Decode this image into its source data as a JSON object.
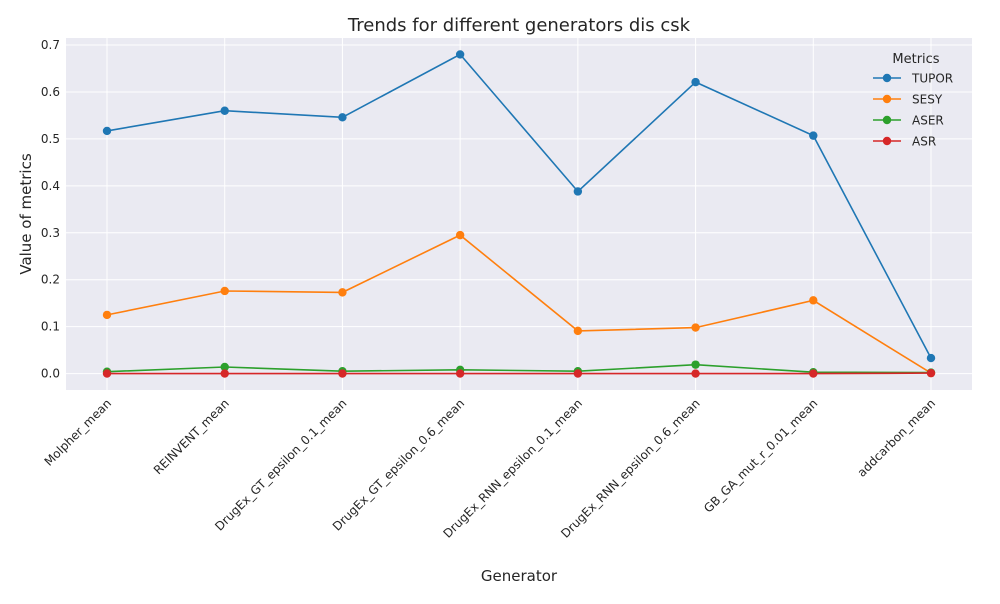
{
  "chart_data": {
    "type": "line",
    "title": "Trends for different generators dis csk",
    "xlabel": "Generator",
    "ylabel": "Value of metrics",
    "categories": [
      "Molpher_mean",
      "REINVENT_mean",
      "DrugEx_GT_epsilon_0.1_mean",
      "DrugEx_GT_epsilon_0.6_mean",
      "DrugEx_RNN_epsilon_0.1_mean",
      "DrugEx_RNN_epsilon_0.6_mean",
      "GB_GA_mut_r_0.01_mean",
      "addcarbon_mean"
    ],
    "ylim": [
      -0.035,
      0.715
    ],
    "yticks": [
      "0.0",
      "0.1",
      "0.2",
      "0.3",
      "0.4",
      "0.5",
      "0.6",
      "0.7"
    ],
    "grid": true,
    "legend": {
      "title": "Metrics",
      "placement": "top-right"
    },
    "series": [
      {
        "name": "TUPOR",
        "color": "#1f77b4",
        "values": [
          0.517,
          0.56,
          0.546,
          0.68,
          0.388,
          0.621,
          0.507,
          0.033
        ]
      },
      {
        "name": "SESY",
        "color": "#ff7f0e",
        "values": [
          0.125,
          0.176,
          0.173,
          0.295,
          0.091,
          0.098,
          0.156,
          0.001
        ]
      },
      {
        "name": "ASER",
        "color": "#2ca02c",
        "values": [
          0.004,
          0.014,
          0.005,
          0.008,
          0.005,
          0.019,
          0.003,
          0.002
        ]
      },
      {
        "name": "ASR",
        "color": "#d62728",
        "values": [
          0.0,
          0.0,
          0.0,
          0.0,
          0.0,
          0.0,
          0.0,
          0.001
        ]
      }
    ]
  }
}
